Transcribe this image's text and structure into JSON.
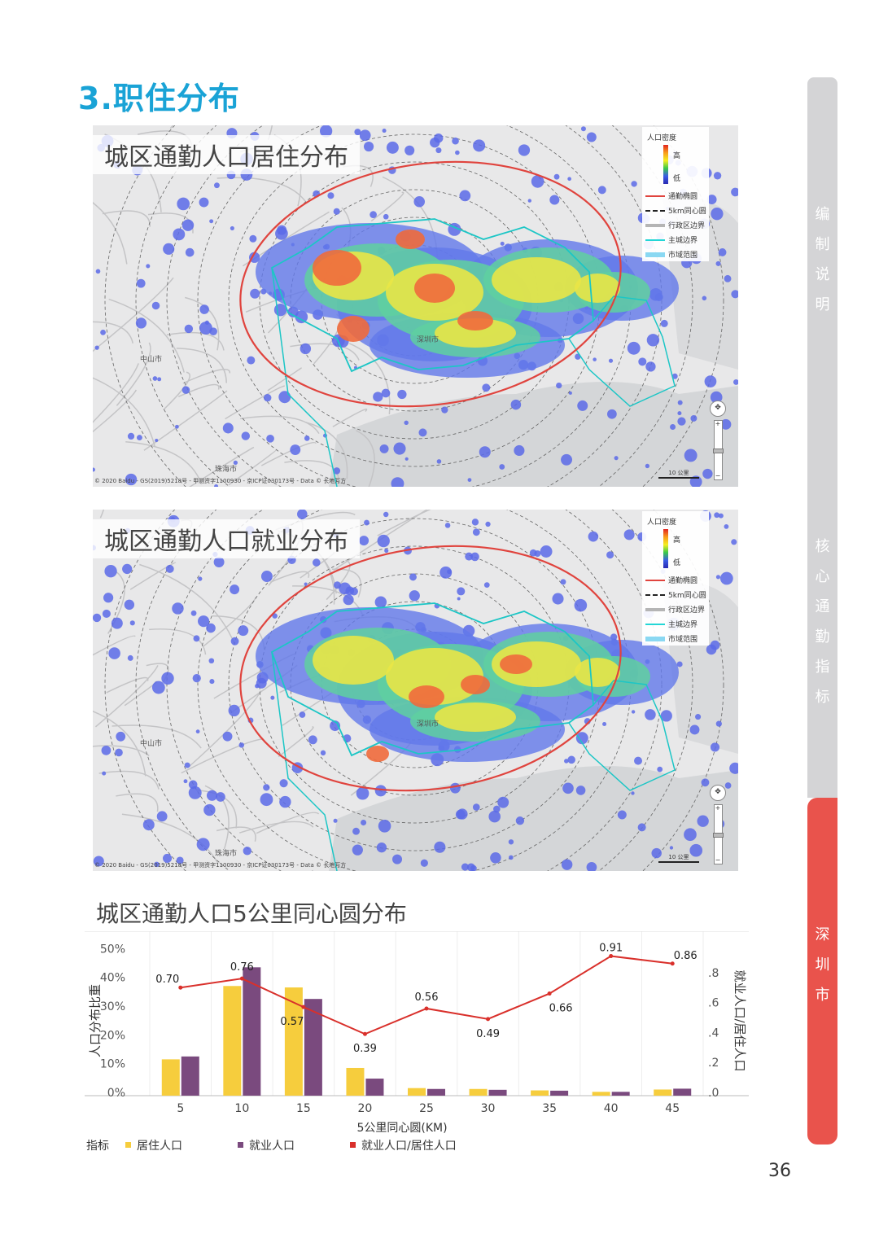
{
  "section_title": "3.职住分布",
  "side_tabs": [
    {
      "label": "编制说明",
      "chars": [
        "编",
        "制",
        "说",
        "明"
      ],
      "color": "#d4d4d6"
    },
    {
      "label": "核心通勤指标",
      "chars": [
        "核",
        "心",
        "通",
        "勤",
        "指",
        "标"
      ],
      "color": "#d4d4d6"
    },
    {
      "label": "深圳市",
      "chars": [
        "深",
        "圳",
        "市"
      ],
      "color": "#e9534c"
    }
  ],
  "legend": {
    "title": "人口密度",
    "high": "高",
    "low": "低",
    "items": [
      {
        "label": "通勤椭圆",
        "color": "#e0443e"
      },
      {
        "label": "5km同心圆",
        "color": "#222222"
      },
      {
        "label": "行政区边界",
        "color": "#b5b5b5"
      },
      {
        "label": "主城边界",
        "color": "#24d6d6"
      },
      {
        "label": "市域范围",
        "color": "#8ad8f2"
      }
    ]
  },
  "map_copyright": "© 2020 Baidu - GS(2019)5218号 - 甲测资字1100930 - 京ICP证030173号 - Data © 长地万方",
  "map_scale": "10 公里",
  "map_places": {
    "city_center": "深圳市",
    "zhongshan": "中山市",
    "zhuhai": "珠海市"
  },
  "maps": [
    {
      "title": "城区通勤人口居住分布"
    },
    {
      "title": "城区通勤人口就业分布"
    }
  ],
  "chart_title": "城区通勤人口5公里同心圆分布",
  "chart_data": {
    "type": "bar",
    "categories": [
      "5",
      "10",
      "15",
      "20",
      "25",
      "30",
      "35",
      "40",
      "45"
    ],
    "series": [
      {
        "name": "居住人口",
        "type": "bar",
        "color": "#f6cd3d",
        "values": [
          0.115,
          0.37,
          0.365,
          0.085,
          0.015,
          0.012,
          0.007,
          0.002,
          0.01
        ]
      },
      {
        "name": "就业人口",
        "type": "bar",
        "color": "#7a4a7e",
        "values": [
          0.125,
          0.435,
          0.325,
          0.048,
          0.012,
          0.009,
          0.006,
          0.002,
          0.013
        ]
      },
      {
        "name": "就业人口/居住人口",
        "type": "line",
        "color": "#d9302b",
        "values": [
          0.7,
          0.76,
          0.57,
          0.39,
          0.56,
          0.49,
          0.66,
          0.91,
          0.86
        ],
        "labels": [
          "0.70",
          "0.76",
          "0.57",
          "0.39",
          "0.56",
          "0.49",
          "0.66",
          "0.91",
          "0.86"
        ]
      }
    ],
    "xlabel": "5公里同心圆(KM)",
    "ylabel": "人口分布比重",
    "y2label": "就业人口/居住人口",
    "ylim": [
      0,
      0.5
    ],
    "y2lim": [
      0,
      1.0
    ],
    "yticks": [
      "0%",
      "10%",
      "20%",
      "30%",
      "40%",
      "50%"
    ],
    "y2ticks": [
      ".0",
      ".2",
      ".4",
      ".6",
      ".8"
    ],
    "legend_title": "指标",
    "legend_position": "bottom",
    "grid": true
  },
  "page_number": "36"
}
